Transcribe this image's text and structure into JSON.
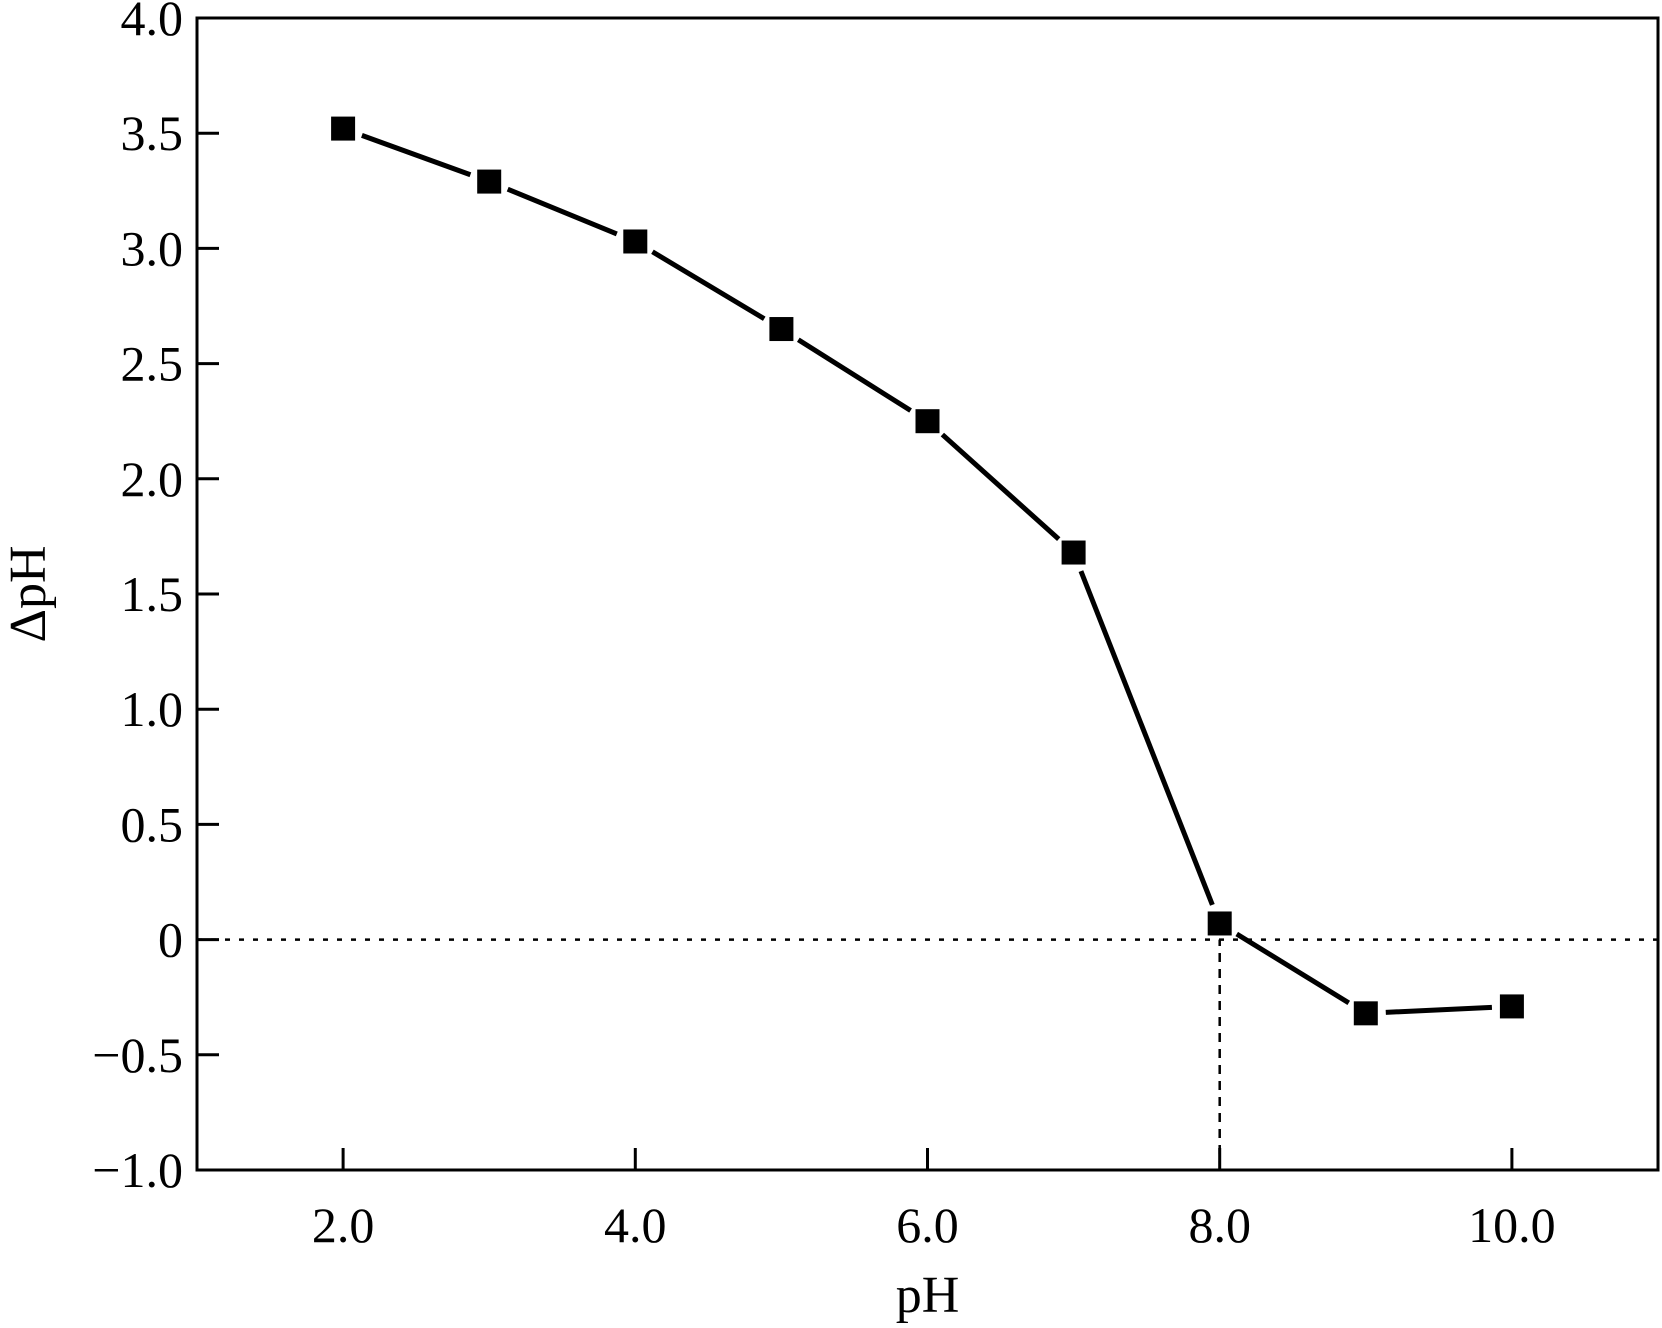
{
  "chart_data": {
    "type": "line",
    "xlabel": "pH",
    "ylabel": "ΔpH",
    "xlim": [
      1.0,
      11.0
    ],
    "ylim": [
      -1.0,
      4.0
    ],
    "x_ticks": [
      2.0,
      4.0,
      6.0,
      8.0,
      10.0
    ],
    "x_tick_labels": [
      "2.0",
      "4.0",
      "6.0",
      "8.0",
      "10.0"
    ],
    "y_ticks": [
      -1.0,
      -0.5,
      0,
      0.5,
      1.0,
      1.5,
      2.0,
      2.5,
      3.0,
      3.5,
      4.0
    ],
    "y_tick_labels": [
      "−1.0",
      "−0.5",
      "0",
      "0.5",
      "1.0",
      "1.5",
      "2.0",
      "2.5",
      "3.0",
      "3.5",
      "4.0"
    ],
    "grid": false,
    "series": [
      {
        "marker": "square",
        "color": "#000000",
        "x": [
          2,
          3,
          4,
          5,
          6,
          7,
          8,
          9,
          10
        ],
        "y": [
          3.52,
          3.29,
          3.03,
          2.65,
          2.25,
          1.68,
          0.07,
          -0.32,
          -0.29
        ]
      }
    ],
    "reference_lines": [
      {
        "orientation": "horizontal",
        "y": 0,
        "style": "dotted"
      },
      {
        "orientation": "vertical",
        "x": 8.0,
        "from_y": -1.0,
        "to_y": 0,
        "style": "dashed"
      }
    ]
  }
}
